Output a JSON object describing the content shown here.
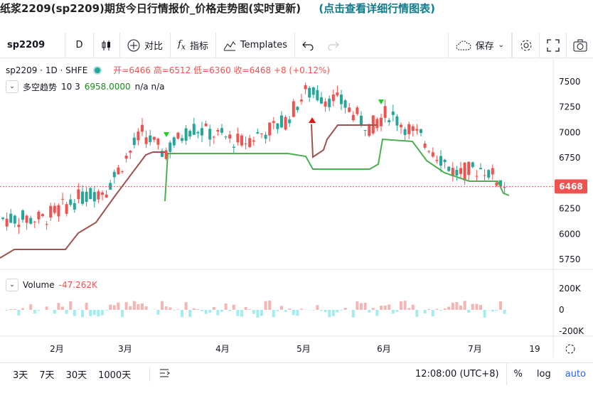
{
  "page": {
    "title": "纸浆2209(sp2209)期货今日行情报价_价格走势图(实时更新)",
    "link": "(点击查看详细行情图表)"
  },
  "toolbar": {
    "symbol": "sp2209",
    "interval": "D",
    "compare_label": "对比",
    "indicators_label": "指标",
    "templates_label": "Templates",
    "save_label": "保存"
  },
  "legend": {
    "symbol_line": "sp2209 · 1D · SHFE",
    "ohlc": "开=6466  高=6512  低=6360  收=6468  +8 (+0.12%)",
    "indicator_name": "多空趋势",
    "indicator_params": "10 3",
    "indicator_value": "6958.0000",
    "indicator_na": "n/a n/a",
    "volume_name": "Volume",
    "volume_value": "-47.262K"
  },
  "axis": {
    "price_ticks": [
      "7500",
      "7250",
      "7000",
      "6750",
      "6500",
      "6250",
      "6000",
      "5750"
    ],
    "volume_ticks": [
      "200K",
      "0",
      "-200K"
    ],
    "time_ticks": [
      "2月",
      "3月",
      "4月",
      "5月",
      "6月",
      "7月",
      "19"
    ],
    "last_price": "6468"
  },
  "bottom": {
    "ranges": [
      "3天",
      "7天",
      "30天",
      "1000天"
    ],
    "time": "12:08:00 (UTC+8)",
    "percent": "%",
    "log": "log",
    "auto": "auto"
  },
  "colors": {
    "up": "#26a69a",
    "down": "#ef5350",
    "upper_band": "#4caf50",
    "lower_band": "#a0524d",
    "accent": "#2962ff"
  }
}
